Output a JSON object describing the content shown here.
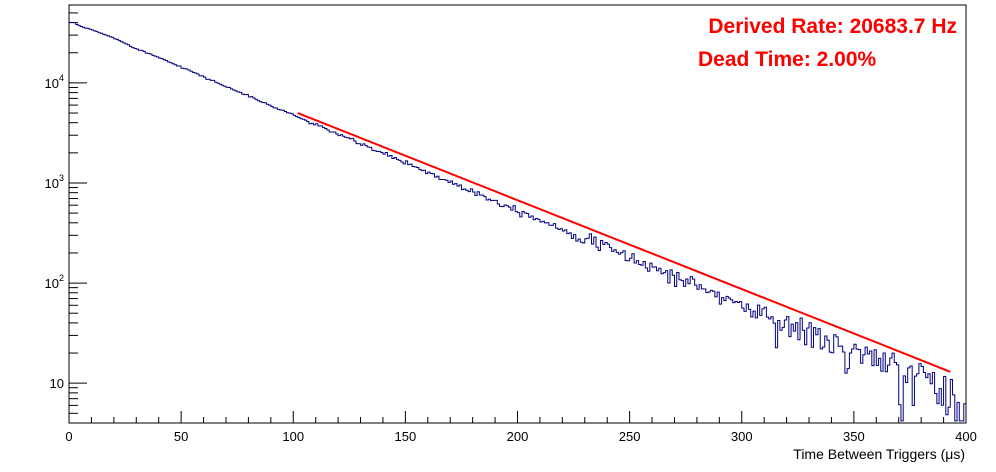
{
  "chart_data": {
    "type": "histogram",
    "xlabel": "Time Between Triggers (μs)",
    "xlim": [
      0,
      400
    ],
    "x_ticks": [
      0,
      50,
      100,
      150,
      200,
      250,
      300,
      350,
      400
    ],
    "x_tick_labels": [
      "0",
      "50",
      "100",
      "150",
      "200",
      "250",
      "300",
      "350",
      "400"
    ],
    "y_scale": "log",
    "ylim": [
      4,
      60000
    ],
    "y_ticks": [
      10,
      100,
      1000,
      10000
    ],
    "y_tick_labels": [
      {
        "base": "10",
        "exp": ""
      },
      {
        "base": "10",
        "exp": "2"
      },
      {
        "base": "10",
        "exp": "3"
      },
      {
        "base": "10",
        "exp": "4"
      }
    ],
    "grid": false,
    "series": [
      {
        "kind": "histogram",
        "color": "#000080",
        "x": [
          0,
          2,
          4,
          6,
          8,
          10,
          15,
          20,
          25,
          30,
          40,
          50,
          60,
          70,
          80,
          90,
          100,
          110,
          120,
          130,
          140,
          150,
          160,
          170,
          180,
          190,
          200,
          210,
          220,
          230,
          240,
          250,
          260,
          270,
          280,
          290,
          300,
          310,
          320,
          330,
          340,
          350,
          360,
          370,
          380,
          390,
          395,
          400
        ],
        "values": [
          40000,
          40000,
          38000,
          36000,
          35000,
          34000,
          31000,
          28000,
          25000,
          22000,
          18000,
          14500,
          11500,
          9200,
          7400,
          5900,
          4800,
          3800,
          3100,
          2450,
          1980,
          1600,
          1280,
          1020,
          830,
          660,
          540,
          430,
          345,
          280,
          225,
          180,
          145,
          117,
          94,
          75,
          60,
          48,
          39,
          31,
          25,
          20,
          16,
          13,
          11,
          8,
          7,
          7
        ]
      },
      {
        "kind": "fit",
        "color": "#ff0000",
        "x": [
          102,
          393
        ],
        "values": [
          5000,
          13
        ]
      }
    ],
    "annotations": [
      {
        "id": "rate",
        "text": "Derived Rate: 20683.7 Hz",
        "color": "#ff0000"
      },
      {
        "id": "dead_time",
        "text": "Dead Time: 2.00%",
        "color": "#ff0000"
      }
    ]
  }
}
